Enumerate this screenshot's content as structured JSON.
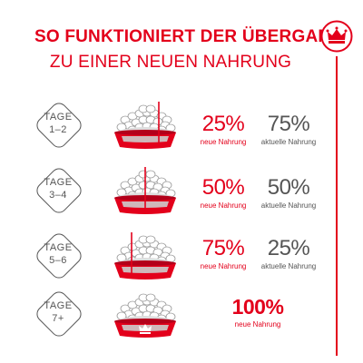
{
  "header": {
    "title_line1": "SO FUNKTIONIERT DER ÜBERGANG",
    "title_line2": "ZU EINER NEUEN NAHRUNG"
  },
  "colors": {
    "brand_red": "#e3001b",
    "text_gray": "#555555"
  },
  "logo_icon": "royal-canin-crown-icon",
  "steps": [
    {
      "label": "TAGE",
      "days": "1–2",
      "new_percent": "25%",
      "new_label": "neue Nahrung",
      "new_fraction": 0.25,
      "current_percent": "75%",
      "current_label": "aktuelle Nahrung"
    },
    {
      "label": "TAGE",
      "days": "3–4",
      "new_percent": "50%",
      "new_label": "neue Nahrung",
      "new_fraction": 0.5,
      "current_percent": "50%",
      "current_label": "aktuelle Nahrung"
    },
    {
      "label": "TAGE",
      "days": "5–6",
      "new_percent": "75%",
      "new_label": "neue Nahrung",
      "new_fraction": 0.75,
      "current_percent": "25%",
      "current_label": "aktuelle Nahrung"
    },
    {
      "label": "TAGE",
      "days": "7+",
      "new_percent": "100%",
      "new_label": "neue Nahrung",
      "new_fraction": 1.0
    }
  ]
}
